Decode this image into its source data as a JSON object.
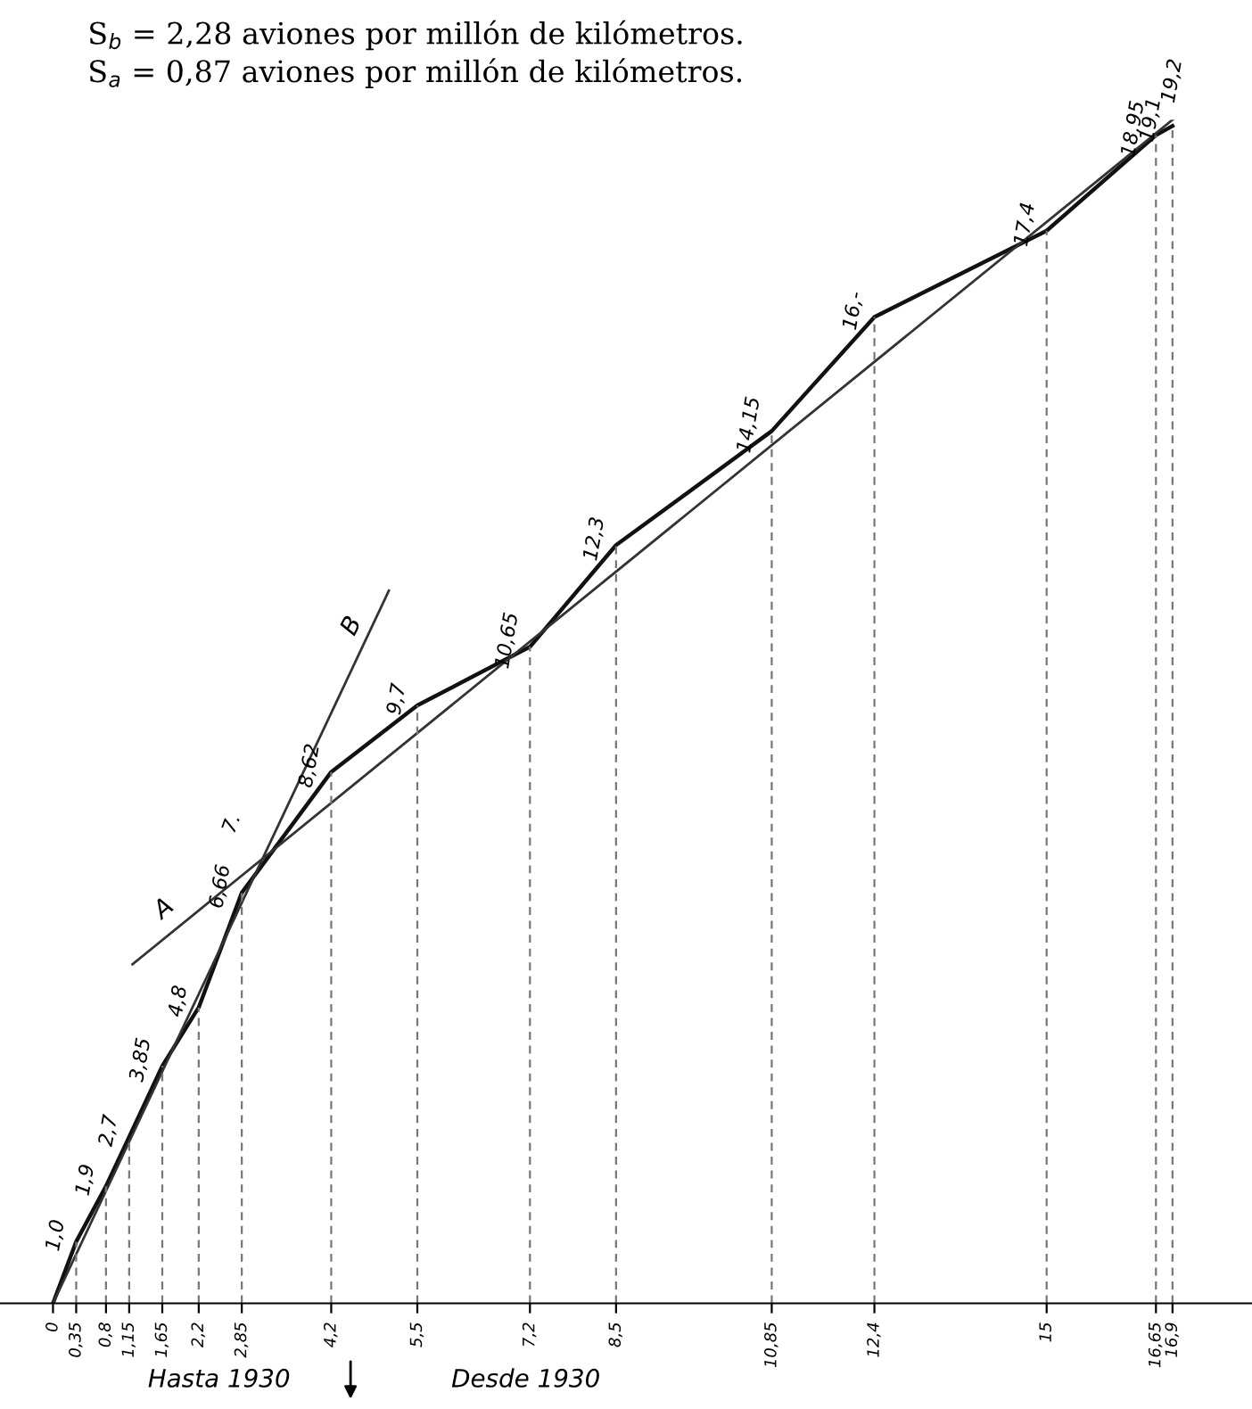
{
  "chart_data": {
    "type": "line",
    "title": "S$_{b}$ = 2,28 aviones por millón de kilómetros.",
    "subtitle": "S$_{a}$ = 0,87 aviones por millón de kilómetros.",
    "series": [
      {
        "color": "#111111",
        "x": [
          0,
          0.35,
          0.8,
          1.15,
          1.65,
          2.2,
          2.85,
          4.2,
          5.5,
          7.2,
          8.5,
          10.85,
          12.4,
          15,
          16.65,
          16.9
        ],
        "values": [
          0,
          1.0,
          1.9,
          2.7,
          3.85,
          4.8,
          6.66,
          8.62,
          9.7,
          10.65,
          12.3,
          14.15,
          16,
          17.4,
          18.95,
          19.1
        ],
        "value_labels": [
          null,
          "1,0",
          "1,9",
          "2,7",
          "3,85",
          "4,8",
          "6,66",
          "8,62",
          "9,7",
          "10,65",
          "12,3",
          "14,15",
          "16,-",
          "17,4",
          "18,95",
          "19,1"
        ]
      },
      {
        "name": "A",
        "color": "#333333",
        "x": [
          1.2,
          16.9
        ],
        "values": [
          5.5,
          19.2
        ],
        "value_labels": [
          null,
          "19,2"
        ]
      },
      {
        "name": "B",
        "color": "#333333",
        "x": [
          0,
          5.07
        ],
        "values": [
          0,
          11.56
        ],
        "value_labels": [
          null,
          null
        ]
      }
    ],
    "xlim": [
      -0.8,
      18.1
    ],
    "xticks": [
      0,
      {
        "value": 0.35,
        "label": "0,35"
      },
      {
        "value": 0.8,
        "label": "0,8"
      },
      {
        "value": 1.15,
        "label": "1,15"
      },
      {
        "value": 1.65,
        "label": "1,65"
      },
      {
        "value": 2.85,
        "label": "2,85"
      },
      {
        "value": 2.2,
        "label": "2,2"
      },
      {
        "value": 4.2,
        "label": "4,2"
      },
      {
        "value": 5.5,
        "label": "5,5"
      },
      {
        "value": 7.2,
        "label": "7,2"
      },
      {
        "value": 8.5,
        "label": "8,5"
      },
      {
        "value": 10.85,
        "label": "10,85"
      },
      {
        "value": 12.4,
        "label": "12,4"
      },
      15,
      {
        "value": 16.65,
        "label": "16,65"
      },
      {
        "value": 16.9,
        "label": "16,9"
      }
    ],
    "tick_labels": "x",
    "grid": "x",
    "legend": false,
    "marker": "none",
    "line_style": "solid",
    "annotations": [
      {
        "text": "7.",
        "x": 3.19,
        "y": 7.28
      },
      "Hasta 1930",
      "Desde 1930"
    ]
  }
}
